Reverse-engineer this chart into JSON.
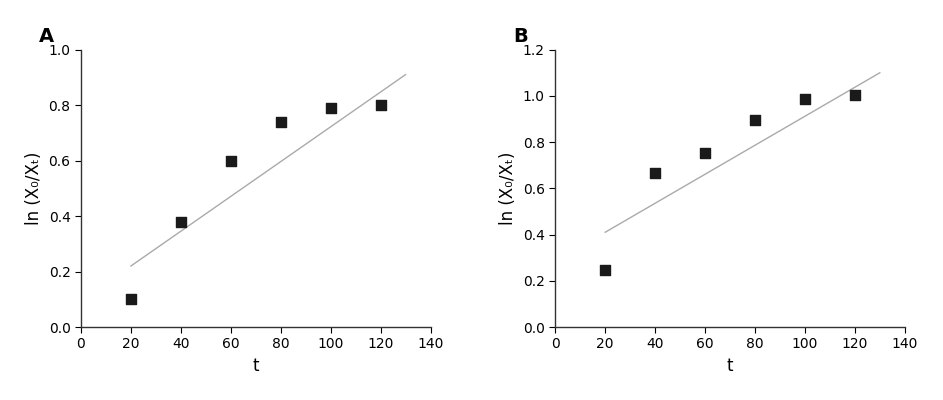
{
  "panel_A": {
    "label": "A",
    "x_data": [
      20,
      40,
      60,
      80,
      100,
      120
    ],
    "y_data": [
      0.1,
      0.38,
      0.6,
      0.74,
      0.79,
      0.8
    ],
    "xlabel": "t",
    "ylabel": "ln (X₀/Xₜ)",
    "xlim": [
      0,
      140
    ],
    "ylim": [
      0.0,
      1.0
    ],
    "yticks": [
      0.0,
      0.2,
      0.4,
      0.6,
      0.8,
      1.0
    ],
    "xticks": [
      0,
      20,
      40,
      60,
      80,
      100,
      120,
      140
    ],
    "line_x": [
      20,
      130
    ],
    "line_y": [
      0.22,
      0.91
    ]
  },
  "panel_B": {
    "label": "B",
    "x_data": [
      20,
      40,
      60,
      80,
      100,
      120
    ],
    "y_data": [
      0.245,
      0.665,
      0.755,
      0.895,
      0.985,
      1.005
    ],
    "xlabel": "t",
    "ylabel": "ln (X₀/Xₜ)",
    "xlim": [
      0,
      140
    ],
    "ylim": [
      0.0,
      1.2
    ],
    "yticks": [
      0.0,
      0.2,
      0.4,
      0.6,
      0.8,
      1.0,
      1.2
    ],
    "xticks": [
      0,
      20,
      40,
      60,
      80,
      100,
      120,
      140
    ],
    "line_x": [
      20,
      130
    ],
    "line_y": [
      0.41,
      1.1
    ]
  },
  "marker_color": "#1a1a1a",
  "line_color": "#aaaaaa",
  "marker_size": 55,
  "line_width": 1.0,
  "background_color": "#ffffff",
  "label_fontsize": 12,
  "tick_fontsize": 10,
  "panel_label_fontsize": 14
}
